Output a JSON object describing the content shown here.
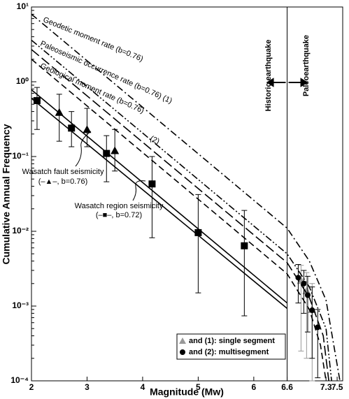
{
  "chart_data": {
    "type": "scatter",
    "x_label": "Magnitude (Mw)",
    "y_label": "Cumulative Annual Frequency",
    "xlim": [
      2,
      7.6
    ],
    "xticks": [
      2,
      3,
      4,
      5,
      6,
      6.6,
      7.3,
      7.5
    ],
    "ylim": [
      0.0001,
      10
    ],
    "yscale": "log",
    "yticks": [
      {
        "value": 0.0001,
        "label": "10⁻⁴"
      },
      {
        "value": 0.001,
        "label": "10⁻³"
      },
      {
        "value": 0.01,
        "label": "10⁻²"
      },
      {
        "value": 0.1,
        "label": "10⁻¹"
      },
      {
        "value": 1,
        "label": "10⁰"
      },
      {
        "value": 10,
        "label": "10¹"
      }
    ],
    "divider": 6.6,
    "legend_position": "lower right",
    "series": [
      {
        "kind": "points",
        "marker": "square",
        "color": "#000000",
        "x": [
          2.1,
          2.72,
          3.35,
          4.17,
          5.0,
          5.83
        ],
        "values": [
          0.56,
          0.24,
          0.11,
          0.043,
          0.0096,
          0.0064
        ],
        "lower": [
          0.23,
          0.135,
          0.046,
          0.0082,
          0.0015,
          0.00074
        ],
        "upper": [
          0.84,
          0.4,
          0.19,
          0.1,
          0.031,
          0.019
        ]
      },
      {
        "kind": "points",
        "marker": "triangle",
        "color": "#000000",
        "x": [
          2.5,
          3.0,
          3.5
        ],
        "values": [
          0.39,
          0.23,
          0.12
        ],
        "lower": [
          0.16,
          0.135,
          0.064
        ],
        "upper": [
          0.68,
          0.44,
          0.23
        ]
      },
      {
        "kind": "points",
        "name": "and (1): single segment",
        "marker": "triangle",
        "color": "#999999",
        "x": [
          6.85,
          6.95,
          7.05
        ],
        "values": [
          0.0022,
          0.0016,
          0.0009
        ],
        "lower": [
          0.00025,
          0.0002,
          0.0001
        ],
        "upper": [
          0.0035,
          0.0028,
          0.002
        ]
      },
      {
        "kind": "points",
        "name": "and (2): multisegment",
        "marker": "circle",
        "color": "#000000",
        "x": [
          6.8,
          6.9,
          6.97,
          7.05,
          7.15
        ],
        "values": [
          0.0024,
          0.002,
          0.0014,
          0.00088,
          0.00052
        ],
        "lower": [
          0.0011,
          0.0008,
          0.00045,
          0.0002,
          0.00011
        ],
        "upper": [
          0.0036,
          0.003,
          0.0025,
          0.0018,
          0.0009
        ]
      },
      {
        "kind": "line",
        "dash": "solid",
        "color": "#000000",
        "x": [
          2,
          6.6
        ],
        "values": [
          0.6,
          0.00093
        ]
      },
      {
        "kind": "line",
        "dash": "solid",
        "color": "#000000",
        "x": [
          2,
          6.6
        ],
        "values": [
          0.78,
          0.0011
        ]
      },
      {
        "kind": "line",
        "dash": "dash",
        "color": "#000000",
        "x": [
          2,
          6.6,
          7.0,
          7.2,
          7.3
        ],
        "values": [
          2.0,
          0.0027,
          0.0009,
          0.0003,
          0.0001
        ]
      },
      {
        "kind": "line",
        "dash": "longdash",
        "color": "#000000",
        "x": [
          2,
          6.6,
          7.0,
          7.25,
          7.35
        ],
        "values": [
          2.7,
          0.0038,
          0.0013,
          0.0004,
          0.0001
        ]
      },
      {
        "kind": "line",
        "dash": "dashdotdot",
        "color": "#000000",
        "x": [
          2,
          6.6,
          7.0,
          7.3,
          7.4
        ],
        "values": [
          3.6,
          0.005,
          0.0018,
          0.0005,
          0.0001
        ]
      },
      {
        "kind": "line",
        "dash": "dashdot",
        "color": "#000000",
        "x": [
          2,
          6.6,
          7.0,
          7.3,
          7.55
        ],
        "values": [
          8.0,
          0.011,
          0.004,
          0.0012,
          0.0001
        ]
      }
    ],
    "annotations": [
      "Geodetic moment rate (b=0.76)",
      "Paleoseismic occurrence rate (b=0.76) (1)",
      "(2)",
      "Geological moment rate (b=0.76)",
      "Wasatch fault seismicity",
      "(–▲–, b=0.76)",
      "Wasatch region seismicity",
      "(–■–, b=0.72)",
      "Historic earthquake",
      "Paleoearthquake"
    ]
  }
}
